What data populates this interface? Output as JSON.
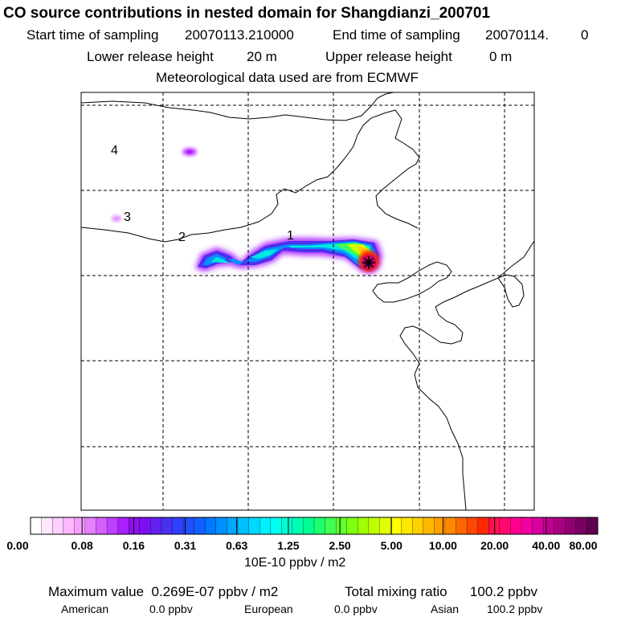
{
  "title": "CO  source contributions in nested domain for Shangdianzi_200701",
  "sampling": {
    "start_label": "Start time of sampling",
    "start_value": "20070113.210000",
    "end_label": "End time of sampling",
    "end_value": "20070114.",
    "end_suffix": "0"
  },
  "release": {
    "lower_label": "Lower release height",
    "lower_value": "20 m",
    "upper_label": "Upper release height",
    "upper_value": "0 m"
  },
  "meteo": "Meteorological data used are from ECMWF",
  "map_labels": [
    "1",
    "2",
    "3",
    "4"
  ],
  "colorbar": {
    "ticks": [
      "0.00",
      "0.08",
      "0.16",
      "0.31",
      "0.63",
      "1.25",
      "2.50",
      "5.00",
      "10.00",
      "20.00",
      "40.00",
      "80.00"
    ],
    "units": "10E-10 ppbv / m2",
    "colors": [
      "#ffffff",
      "#ffe8ff",
      "#ffd0ff",
      "#ffb8ff",
      "#f7a0ff",
      "#e680ff",
      "#d460ff",
      "#c040ff",
      "#a820ff",
      "#9010f0",
      "#7a10f0",
      "#6420f0",
      "#4a30f0",
      "#3040ff",
      "#2050ff",
      "#1060ff",
      "#0078ff",
      "#0090ff",
      "#00a8ff",
      "#00c0ff",
      "#00d8ff",
      "#00f0ff",
      "#00ffee",
      "#00ffd0",
      "#00ffb0",
      "#00ff90",
      "#20ff70",
      "#40ff50",
      "#60ff30",
      "#80ff10",
      "#a0ff00",
      "#c0ff00",
      "#e0ff00",
      "#ffff00",
      "#ffe800",
      "#ffd000",
      "#ffb800",
      "#ffa000",
      "#ff8800",
      "#ff6800",
      "#ff4800",
      "#ff2800",
      "#ff1050",
      "#ff0870",
      "#ff0090",
      "#f000a0",
      "#d800a0",
      "#c00090",
      "#a80080",
      "#900070",
      "#780060",
      "#600050"
    ]
  },
  "summary": {
    "max_label": "Maximum value",
    "max_value": "0.269E-07 ppbv / m2",
    "total_label": "Total mixing ratio",
    "total_value": "100.2 ppbv"
  },
  "regions": [
    {
      "name": "American",
      "value": "0.0 ppbv"
    },
    {
      "name": "European",
      "value": "0.0 ppbv"
    },
    {
      "name": "Asian",
      "value": "100.2 ppbv"
    }
  ]
}
